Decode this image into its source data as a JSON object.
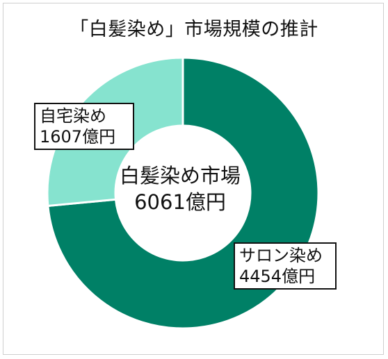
{
  "chart_data": {
    "type": "pie",
    "title": "「白髪染め」市場規模の推計",
    "center_label": [
      "白髪染め市場",
      "6061億円"
    ],
    "total": 6061,
    "unit": "億円",
    "slices": [
      {
        "name": "サロン染め",
        "value": 4454,
        "value_label": "4454億円",
        "color": "#008066"
      },
      {
        "name": "自宅染め",
        "value": 1607,
        "value_label": "1607億円",
        "color": "#86e3cf"
      }
    ],
    "legend": "none"
  }
}
